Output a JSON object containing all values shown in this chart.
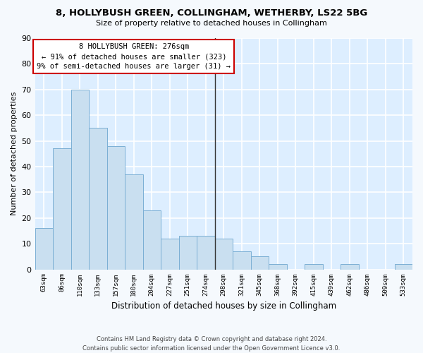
{
  "title": "8, HOLLYBUSH GREEN, COLLINGHAM, WETHERBY, LS22 5BG",
  "subtitle": "Size of property relative to detached houses in Collingham",
  "xlabel": "Distribution of detached houses by size in Collingham",
  "ylabel": "Number of detached properties",
  "bin_labels": [
    "63sqm",
    "86sqm",
    "110sqm",
    "133sqm",
    "157sqm",
    "180sqm",
    "204sqm",
    "227sqm",
    "251sqm",
    "274sqm",
    "298sqm",
    "321sqm",
    "345sqm",
    "368sqm",
    "392sqm",
    "415sqm",
    "439sqm",
    "462sqm",
    "486sqm",
    "509sqm",
    "533sqm"
  ],
  "bin_values": [
    16,
    47,
    70,
    55,
    48,
    37,
    23,
    12,
    13,
    13,
    12,
    7,
    5,
    2,
    0,
    2,
    0,
    2,
    0,
    0,
    2
  ],
  "bar_color": "#c9dff0",
  "bar_edge_color": "#7bafd4",
  "reference_line_x": 9.5,
  "annotation_title": "8 HOLLYBUSH GREEN: 276sqm",
  "annotation_line1": "← 91% of detached houses are smaller (323)",
  "annotation_line2": "9% of semi-detached houses are larger (31) →",
  "ylim": [
    0,
    90
  ],
  "yticks": [
    0,
    10,
    20,
    30,
    40,
    50,
    60,
    70,
    80,
    90
  ],
  "footer_line1": "Contains HM Land Registry data © Crown copyright and database right 2024.",
  "footer_line2": "Contains public sector information licensed under the Open Government Licence v3.0.",
  "plot_bg_color": "#ddeeff",
  "fig_bg_color": "#f5f9fd"
}
